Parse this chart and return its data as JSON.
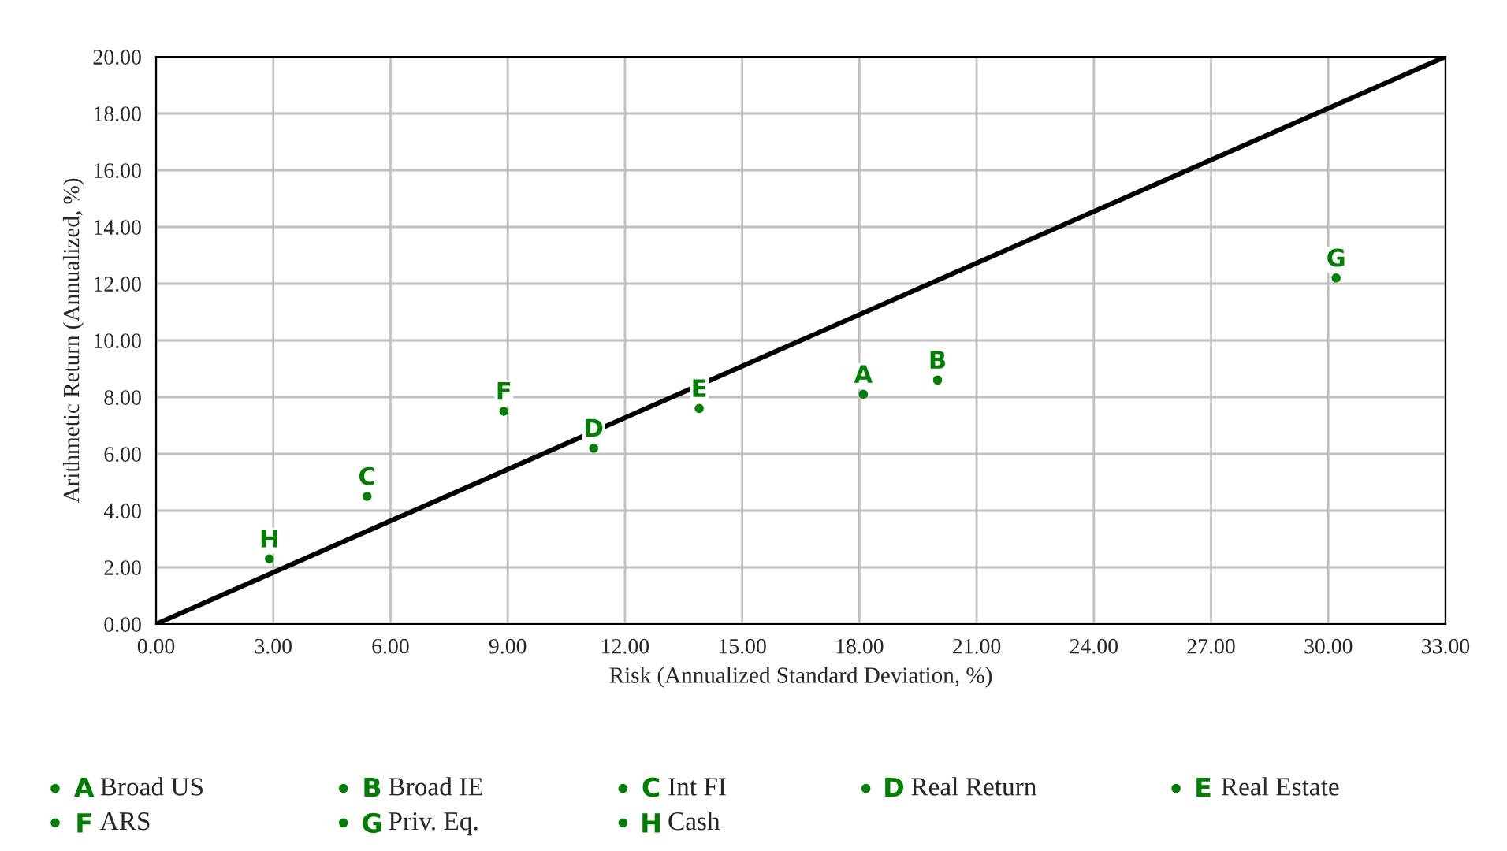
{
  "chart_data": {
    "type": "scatter",
    "xlabel": "Risk (Annualized Standard Deviation, %)",
    "ylabel": "Arithmetic Return (Annualized, %)",
    "series": [
      {
        "name": "Broad US",
        "color": "#008000",
        "x": [
          18.1
        ],
        "values": [
          8.1
        ],
        "value_labels": [
          "A"
        ]
      },
      {
        "name": "Broad IE",
        "color": "#008000",
        "x": [
          20.0
        ],
        "values": [
          8.6
        ],
        "value_labels": [
          "B"
        ]
      },
      {
        "name": "Int FI",
        "color": "#008000",
        "x": [
          5.4
        ],
        "values": [
          4.5
        ],
        "value_labels": [
          "C"
        ]
      },
      {
        "name": "Real Return",
        "color": "#008000",
        "x": [
          11.2
        ],
        "values": [
          6.2
        ],
        "value_labels": [
          "D"
        ]
      },
      {
        "name": "Real Estate",
        "color": "#008000",
        "x": [
          13.9
        ],
        "values": [
          7.6
        ],
        "value_labels": [
          "E"
        ]
      },
      {
        "name": "ARS",
        "color": "#008000",
        "x": [
          8.9
        ],
        "values": [
          7.5
        ],
        "value_labels": [
          "F"
        ]
      },
      {
        "name": "Priv. Eq.",
        "color": "#008000",
        "x": [
          30.2
        ],
        "values": [
          12.2
        ],
        "value_labels": [
          "G"
        ]
      },
      {
        "name": "Cash",
        "color": "#008000",
        "x": [
          2.9
        ],
        "values": [
          2.3
        ],
        "value_labels": [
          "H"
        ]
      },
      {
        "type": "line",
        "color": "#000000",
        "x": [
          0,
          33
        ],
        "values": [
          0,
          20
        ]
      }
    ],
    "xlim": [
      0,
      33
    ],
    "ylim": [
      0,
      20
    ],
    "xticks": [
      {
        "value": 0,
        "label": "0.00"
      },
      {
        "value": 3,
        "label": "3.00"
      },
      {
        "value": 6,
        "label": "6.00"
      },
      {
        "value": 9,
        "label": "9.00"
      },
      {
        "value": 12,
        "label": "12.00"
      },
      {
        "value": 15,
        "label": "15.00"
      },
      {
        "value": 18,
        "label": "18.00"
      },
      {
        "value": 21,
        "label": "21.00"
      },
      {
        "value": 24,
        "label": "24.00"
      },
      {
        "value": 27,
        "label": "27.00"
      },
      {
        "value": 30,
        "label": "30.00"
      },
      {
        "value": 33,
        "label": "33.00"
      }
    ],
    "yticks": [
      {
        "value": 0,
        "label": "0.00"
      },
      {
        "value": 2,
        "label": "2.00"
      },
      {
        "value": 4,
        "label": "4.00"
      },
      {
        "value": 6,
        "label": "6.00"
      },
      {
        "value": 8,
        "label": "8.00"
      },
      {
        "value": 10,
        "label": "10.00"
      },
      {
        "value": 12,
        "label": "12.00"
      },
      {
        "value": 14,
        "label": "14.00"
      },
      {
        "value": 16,
        "label": "16.00"
      },
      {
        "value": 18,
        "label": "18.00"
      },
      {
        "value": 20,
        "label": "20.00"
      }
    ],
    "grid": true,
    "legend": "bottom"
  }
}
